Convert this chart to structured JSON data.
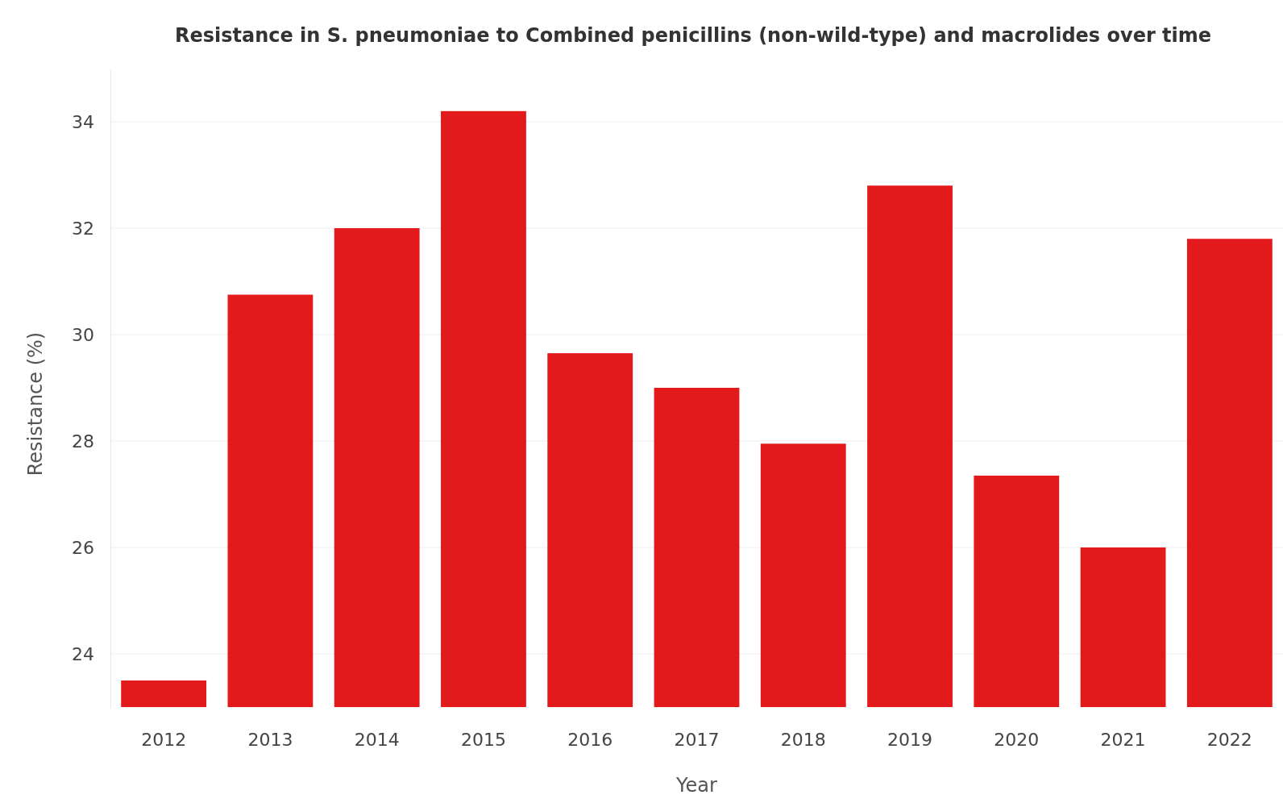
{
  "chart_data": {
    "type": "bar",
    "title": "Resistance in S. pneumoniae to Combined penicillins (non-wild-type) and macrolides over time",
    "xlabel": "Year",
    "ylabel": "Resistance (%)",
    "categories": [
      "2012",
      "2013",
      "2014",
      "2015",
      "2016",
      "2017",
      "2018",
      "2019",
      "2020",
      "2021",
      "2022"
    ],
    "values": [
      23.5,
      30.75,
      32.0,
      34.2,
      29.65,
      29.0,
      27.95,
      32.8,
      27.35,
      26.0,
      31.8
    ],
    "color": "#e31a1c",
    "ylim": [
      23,
      35
    ],
    "yticks": [
      24,
      26,
      28,
      30,
      32,
      34
    ],
    "grid": "y"
  }
}
